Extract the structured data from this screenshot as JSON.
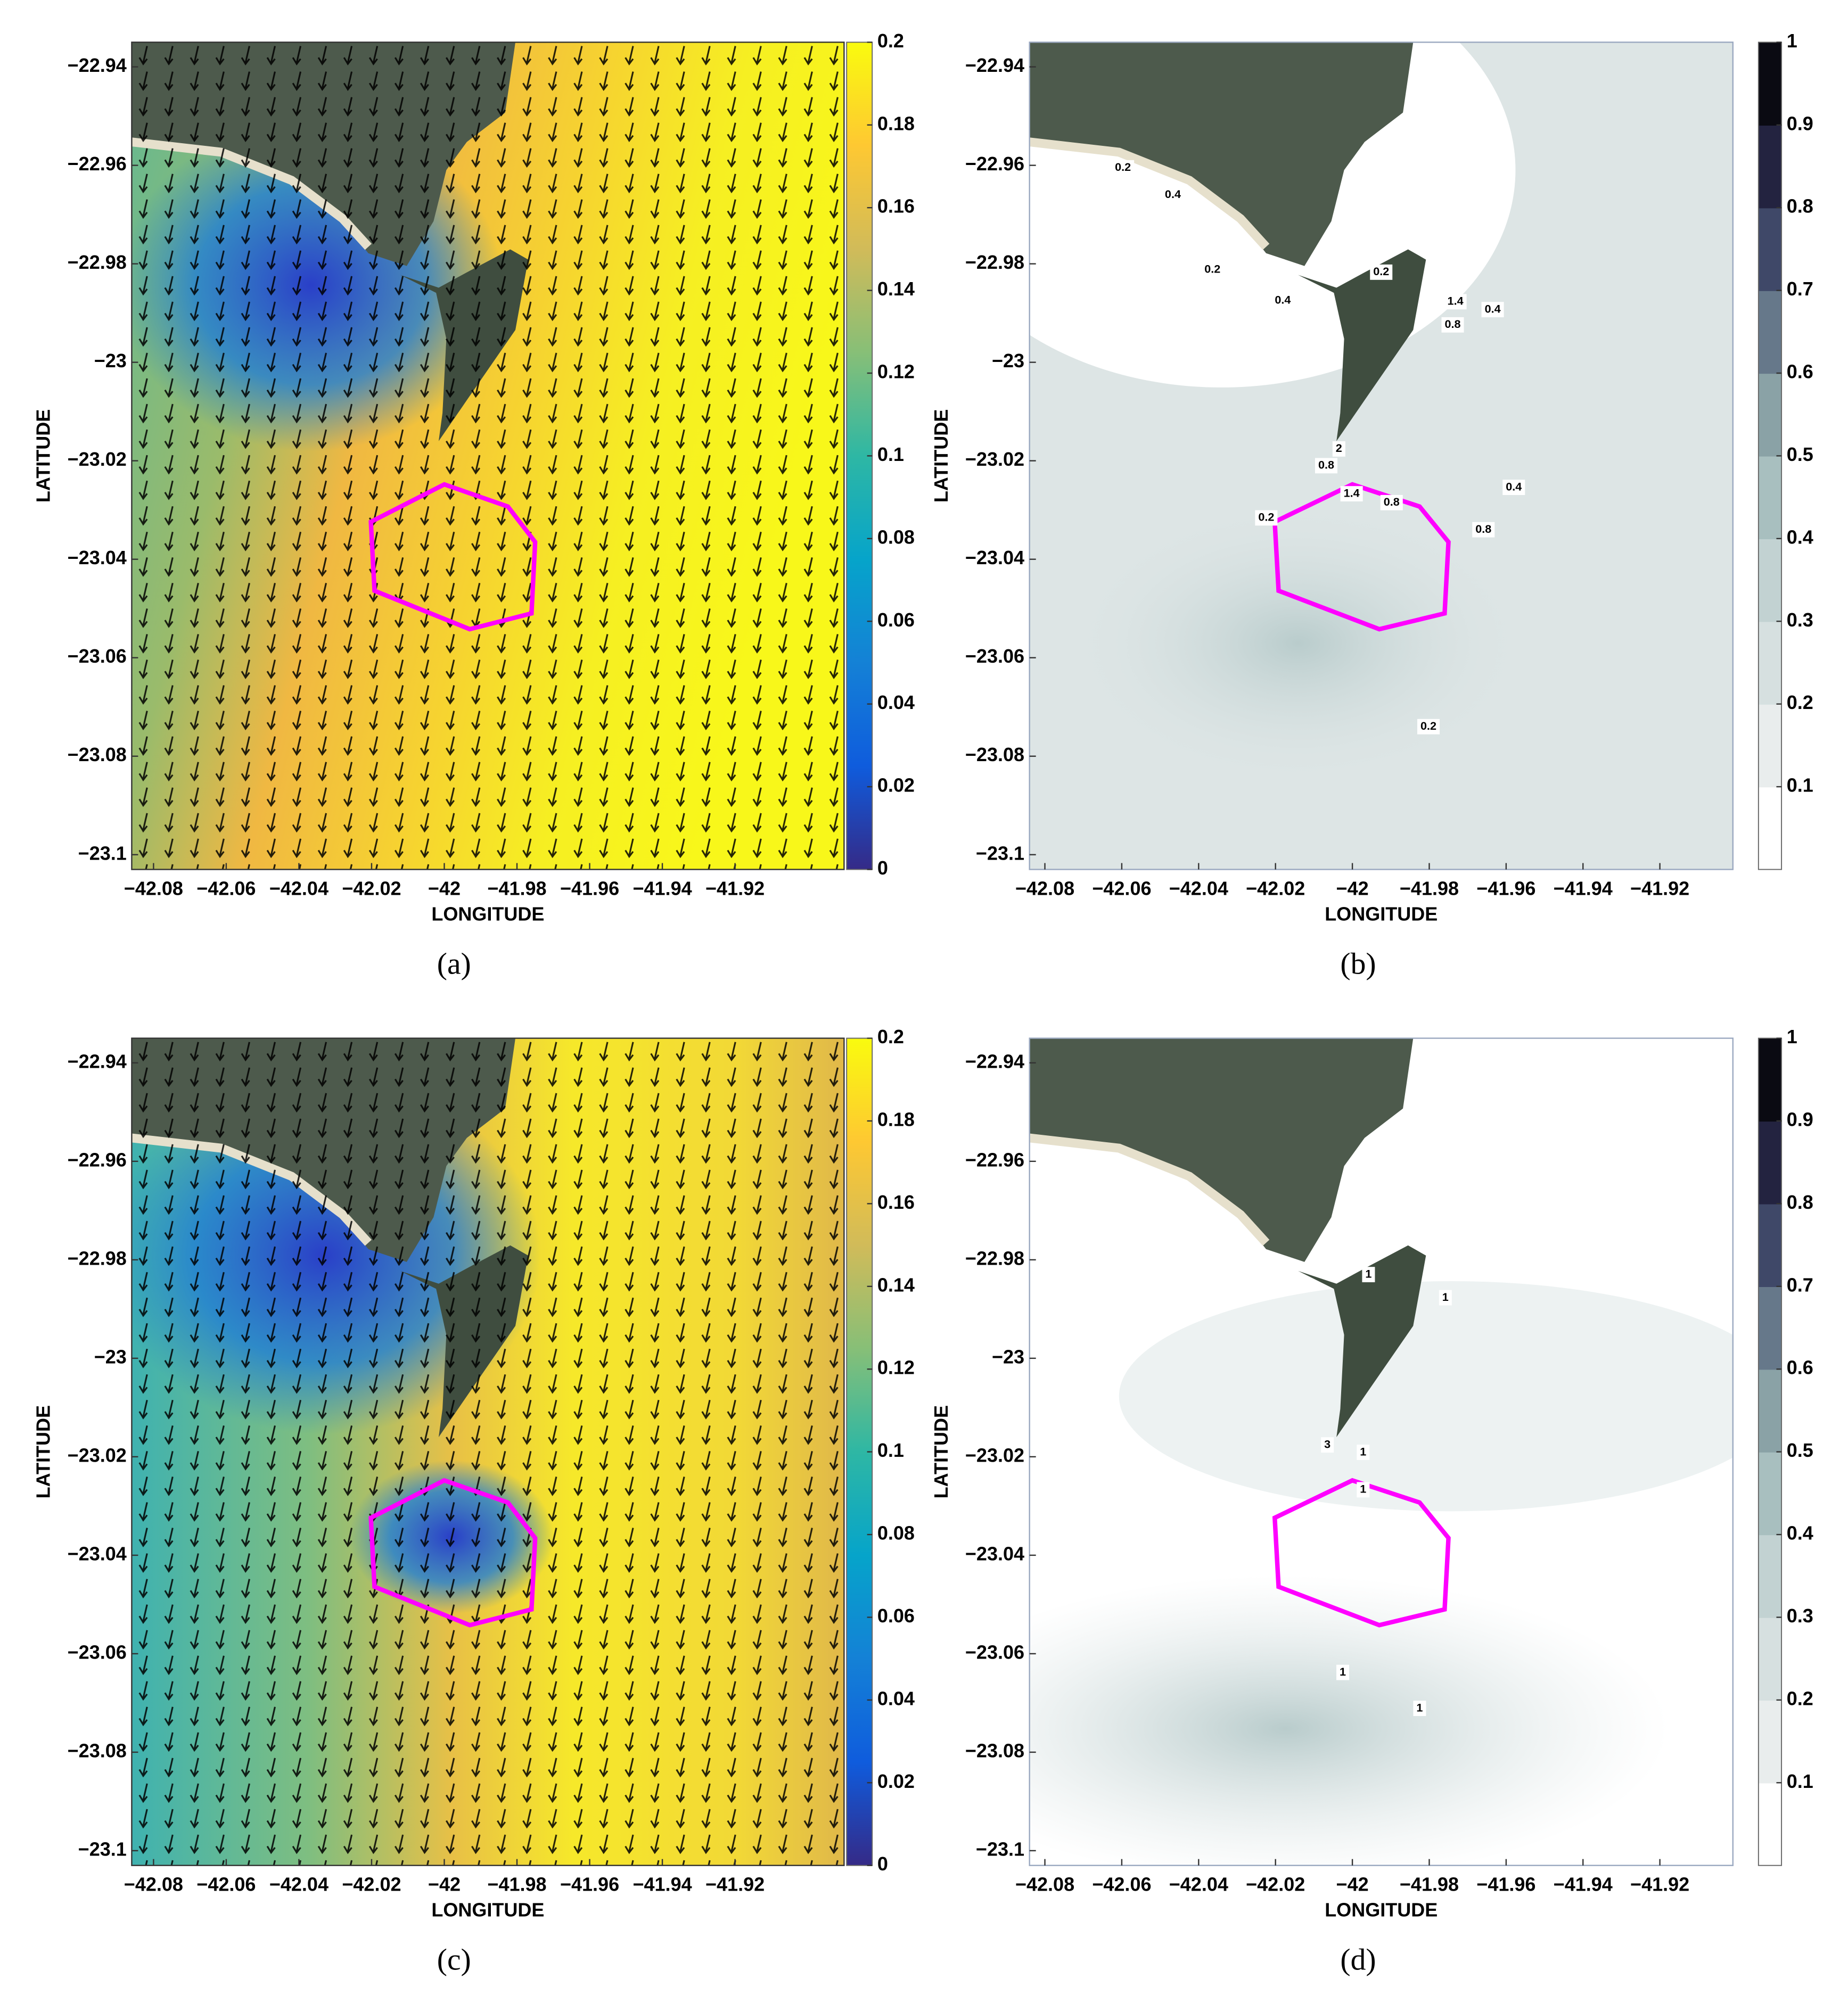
{
  "chart_data": [
    {
      "type": "quiver",
      "panel_label": "(a)",
      "xlabel": "LONGITUDE",
      "ylabel": "LATITUDE",
      "xlim": [
        -42.086,
        -41.89
      ],
      "ylim": [
        -23.103,
        -22.935
      ],
      "xticks": [
        {
          "value": -42.08,
          "label": "−42.08"
        },
        {
          "value": -42.06,
          "label": "−42.06"
        },
        {
          "value": -42.04,
          "label": "−42.04"
        },
        {
          "value": -42.02,
          "label": "−42.02"
        },
        {
          "value": -42,
          "label": "−42"
        },
        {
          "value": -41.98,
          "label": "−41.98"
        },
        {
          "value": -41.96,
          "label": "−41.96"
        },
        {
          "value": -41.94,
          "label": "−41.94"
        },
        {
          "value": -41.92,
          "label": "−41.92"
        }
      ],
      "yticks": [
        {
          "value": -22.94,
          "label": "−22.94"
        },
        {
          "value": -22.96,
          "label": "−22.96"
        },
        {
          "value": -22.98,
          "label": "−22.98"
        },
        {
          "value": -23,
          "label": "−23"
        },
        {
          "value": -23.02,
          "label": "−23.02"
        },
        {
          "value": -23.04,
          "label": "−23.04"
        },
        {
          "value": -23.06,
          "label": "−23.06"
        },
        {
          "value": -23.08,
          "label": "−23.08"
        },
        {
          "value": -23.1,
          "label": "−23.1"
        }
      ],
      "colorbar": {
        "lim": [
          0,
          0.2
        ],
        "ticks": [
          0,
          0.02,
          0.04,
          0.06,
          0.08,
          0.1,
          0.12,
          0.14,
          0.16,
          0.18,
          0.2
        ],
        "colors": [
          "#352a87",
          "#0f5cdd",
          "#1481d6",
          "#06a4ca",
          "#2eb7a4",
          "#87bf77",
          "#d1bb59",
          "#fec832",
          "#f9fb0e"
        ],
        "discrete": false
      },
      "polygon": {
        "color": "#ff00ff",
        "lon": [
          -42.0,
          -42.0202,
          -42.0192,
          -41.993,
          -41.976,
          -41.975,
          -41.9825
        ],
        "lat": [
          -23.0248,
          -23.0324,
          -23.0464,
          -23.0542,
          -23.051,
          -23.0365,
          -23.0293
        ]
      }
    },
    {
      "type": "contour",
      "panel_label": "(b)",
      "xlabel": "LONGITUDE",
      "ylabel": "LATITUDE",
      "xlim": [
        -42.084,
        -41.901
      ],
      "ylim": [
        -23.103,
        -22.935
      ],
      "xticks": [
        {
          "value": -42.08,
          "label": "−42.08"
        },
        {
          "value": -42.06,
          "label": "−42.06"
        },
        {
          "value": -42.04,
          "label": "−42.04"
        },
        {
          "value": -42.02,
          "label": "−42.02"
        },
        {
          "value": -42,
          "label": "−42"
        },
        {
          "value": -41.98,
          "label": "−41.98"
        },
        {
          "value": -41.96,
          "label": "−41.96"
        },
        {
          "value": -41.94,
          "label": "−41.94"
        },
        {
          "value": -41.92,
          "label": "−41.92"
        }
      ],
      "yticks": [
        {
          "value": -22.94,
          "label": "−22.94"
        },
        {
          "value": -22.96,
          "label": "−22.96"
        },
        {
          "value": -22.98,
          "label": "−22.98"
        },
        {
          "value": -23,
          "label": "−23"
        },
        {
          "value": -23.02,
          "label": "−23.02"
        },
        {
          "value": -23.04,
          "label": "−23.04"
        },
        {
          "value": -23.06,
          "label": "−23.06"
        },
        {
          "value": -23.08,
          "label": "−23.08"
        },
        {
          "value": -23.1,
          "label": "−23.1"
        }
      ],
      "colorbar": {
        "lim": [
          0,
          1
        ],
        "ticks": [
          0.1,
          0.2,
          0.3,
          0.4,
          0.5,
          0.6,
          0.7,
          0.8,
          0.9,
          1
        ],
        "colors": [
          "#ffffff",
          "#e9eded",
          "#d6e0e0",
          "#c2d2d2",
          "#a8bfbf",
          "#8aa2a6",
          "#66788a",
          "#3f4868",
          "#232340",
          "#0a0a12"
        ],
        "discrete": true
      },
      "polygon": {
        "color": "#ff00ff",
        "lon": [
          -42.0,
          -42.0202,
          -42.0192,
          -41.993,
          -41.976,
          -41.975,
          -41.9825
        ],
        "lat": [
          -23.0248,
          -23.0324,
          -23.0464,
          -23.0542,
          -23.051,
          -23.0365,
          -23.0293
        ]
      },
      "contour_labels": [
        {
          "lon": -42.0597,
          "lat": -22.9605,
          "value": 0.2
        },
        {
          "lon": -42.0467,
          "lat": -22.966,
          "value": 0.4
        },
        {
          "lon": -42.0364,
          "lat": -22.9812,
          "value": 0.2
        },
        {
          "lon": -42.0181,
          "lat": -22.9875,
          "value": 0.4
        },
        {
          "lon": -41.9925,
          "lat": -22.9817,
          "value": 0.2
        },
        {
          "lon": -41.9732,
          "lat": -22.9877,
          "value": 1.4
        },
        {
          "lon": -41.9739,
          "lat": -22.9924,
          "value": 0.8
        },
        {
          "lon": -41.9635,
          "lat": -22.9893,
          "value": 0.4
        },
        {
          "lon": -42.0035,
          "lat": -23.0176,
          "value": 2
        },
        {
          "lon": -42.0068,
          "lat": -23.021,
          "value": 0.8
        },
        {
          "lon": -42.0002,
          "lat": -23.0267,
          "value": 1.4
        },
        {
          "lon": -41.9898,
          "lat": -23.0285,
          "value": 0.8
        },
        {
          "lon": -42.0224,
          "lat": -23.0316,
          "value": 0.2
        },
        {
          "lon": -41.958,
          "lat": -23.0254,
          "value": 0.4
        },
        {
          "lon": -41.9659,
          "lat": -23.034,
          "value": 0.8
        },
        {
          "lon": -41.9802,
          "lat": -23.074,
          "value": 0.2
        }
      ]
    },
    {
      "type": "quiver",
      "panel_label": "(c)",
      "xlabel": "LONGITUDE",
      "ylabel": "LATITUDE",
      "xlim": [
        -42.086,
        -41.89
      ],
      "ylim": [
        -23.103,
        -22.935
      ],
      "xticks": [
        {
          "value": -42.08,
          "label": "−42.08"
        },
        {
          "value": -42.06,
          "label": "−42.06"
        },
        {
          "value": -42.04,
          "label": "−42.04"
        },
        {
          "value": -42.02,
          "label": "−42.02"
        },
        {
          "value": -42,
          "label": "−42"
        },
        {
          "value": -41.98,
          "label": "−41.98"
        },
        {
          "value": -41.96,
          "label": "−41.96"
        },
        {
          "value": -41.94,
          "label": "−41.94"
        },
        {
          "value": -41.92,
          "label": "−41.92"
        }
      ],
      "yticks": [
        {
          "value": -22.94,
          "label": "−22.94"
        },
        {
          "value": -22.96,
          "label": "−22.96"
        },
        {
          "value": -22.98,
          "label": "−22.98"
        },
        {
          "value": -23,
          "label": "−23"
        },
        {
          "value": -23.02,
          "label": "−23.02"
        },
        {
          "value": -23.04,
          "label": "−23.04"
        },
        {
          "value": -23.06,
          "label": "−23.06"
        },
        {
          "value": -23.08,
          "label": "−23.08"
        },
        {
          "value": -23.1,
          "label": "−23.1"
        }
      ],
      "colorbar": {
        "lim": [
          0,
          0.2
        ],
        "ticks": [
          0,
          0.02,
          0.04,
          0.06,
          0.08,
          0.1,
          0.12,
          0.14,
          0.16,
          0.18,
          0.2
        ],
        "colors": [
          "#352a87",
          "#0f5cdd",
          "#1481d6",
          "#06a4ca",
          "#2eb7a4",
          "#87bf77",
          "#d1bb59",
          "#fec832",
          "#f9fb0e"
        ],
        "discrete": false
      },
      "polygon": {
        "color": "#ff00ff",
        "lon": [
          -42.0,
          -42.0202,
          -42.0192,
          -41.993,
          -41.976,
          -41.975,
          -41.9825
        ],
        "lat": [
          -23.0248,
          -23.0324,
          -23.0464,
          -23.0542,
          -23.051,
          -23.0365,
          -23.0293
        ]
      }
    },
    {
      "type": "contour",
      "panel_label": "(d)",
      "xlabel": "LONGITUDE",
      "ylabel": "LATITUDE",
      "xlim": [
        -42.084,
        -41.901
      ],
      "ylim": [
        -23.103,
        -22.935
      ],
      "xticks": [
        {
          "value": -42.08,
          "label": "−42.08"
        },
        {
          "value": -42.06,
          "label": "−42.06"
        },
        {
          "value": -42.04,
          "label": "−42.04"
        },
        {
          "value": -42.02,
          "label": "−42.02"
        },
        {
          "value": -42,
          "label": "−42"
        },
        {
          "value": -41.98,
          "label": "−41.98"
        },
        {
          "value": -41.96,
          "label": "−41.96"
        },
        {
          "value": -41.94,
          "label": "−41.94"
        },
        {
          "value": -41.92,
          "label": "−41.92"
        }
      ],
      "yticks": [
        {
          "value": -22.94,
          "label": "−22.94"
        },
        {
          "value": -22.96,
          "label": "−22.96"
        },
        {
          "value": -22.98,
          "label": "−22.98"
        },
        {
          "value": -23,
          "label": "−23"
        },
        {
          "value": -23.02,
          "label": "−23.02"
        },
        {
          "value": -23.04,
          "label": "−23.04"
        },
        {
          "value": -23.06,
          "label": "−23.06"
        },
        {
          "value": -23.08,
          "label": "−23.08"
        },
        {
          "value": -23.1,
          "label": "−23.1"
        }
      ],
      "colorbar": {
        "lim": [
          0,
          1
        ],
        "ticks": [
          0.1,
          0.2,
          0.3,
          0.4,
          0.5,
          0.6,
          0.7,
          0.8,
          0.9,
          1
        ],
        "colors": [
          "#ffffff",
          "#e9eded",
          "#d6e0e0",
          "#c2d2d2",
          "#a8bfbf",
          "#8aa2a6",
          "#66788a",
          "#3f4868",
          "#232340",
          "#0a0a12"
        ],
        "discrete": true
      },
      "polygon": {
        "color": "#ff00ff",
        "lon": [
          -42.0,
          -42.0202,
          -42.0192,
          -41.993,
          -41.976,
          -41.975,
          -41.9825
        ],
        "lat": [
          -23.0248,
          -23.0324,
          -23.0464,
          -23.0542,
          -23.051,
          -23.0365,
          -23.0293
        ]
      },
      "contour_labels": [
        {
          "lon": -41.9958,
          "lat": -22.983,
          "value": 1
        },
        {
          "lon": -41.9758,
          "lat": -22.9877,
          "value": 1
        },
        {
          "lon": -42.0065,
          "lat": -23.0176,
          "value": 3
        },
        {
          "lon": -41.9972,
          "lat": -23.0191,
          "value": 1
        },
        {
          "lon": -41.9972,
          "lat": -23.0267,
          "value": 1
        },
        {
          "lon": -42.0025,
          "lat": -23.0638,
          "value": 1
        },
        {
          "lon": -41.9825,
          "lat": -23.0711,
          "value": 1
        }
      ]
    }
  ]
}
